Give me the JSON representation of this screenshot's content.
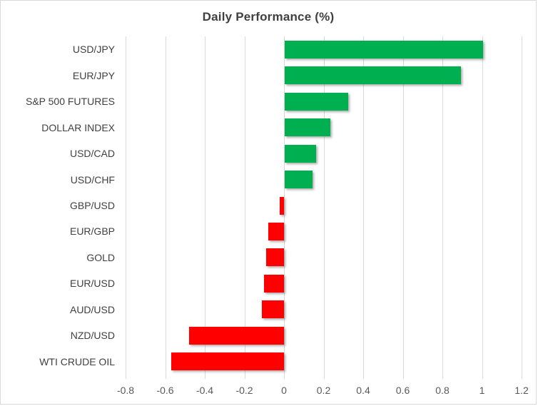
{
  "chart": {
    "title": "Daily Performance (%)",
    "colors": {
      "positive_bar": "#00B050",
      "negative_bar": "#FF0000",
      "gridline": "#D9D9D9",
      "tick_mark": "#D9D9D9",
      "border": "#D9D9D9",
      "title_text": "#404040",
      "category_text": "#404040",
      "axis_text": "#595959",
      "background": "#FFFFFF"
    }
  },
  "chart_data": {
    "type": "bar",
    "orientation": "horizontal",
    "title": "Daily Performance (%)",
    "categories": [
      "USD/JPY",
      "EUR/JPY",
      "S&P 500 FUTURES",
      "DOLLAR INDEX",
      "USD/CAD",
      "USD/CHF",
      "GBP/USD",
      "EUR/GBP",
      "GOLD",
      "EUR/USD",
      "AUD/USD",
      "NZD/USD",
      "WTI CRUDE OIL"
    ],
    "values": [
      1.0,
      0.89,
      0.32,
      0.23,
      0.16,
      0.14,
      -0.02,
      -0.08,
      -0.09,
      -0.1,
      -0.11,
      -0.48,
      -0.57
    ],
    "xlabel": "",
    "ylabel": "",
    "xlim": [
      -0.8,
      1.2
    ],
    "xticks": [
      -0.8,
      -0.6,
      -0.4,
      -0.2,
      0,
      0.2,
      0.4,
      0.6,
      0.8,
      1,
      1.2
    ],
    "xtick_labels": [
      "-0.8",
      "-0.6",
      "-0.4",
      "-0.2",
      "0",
      "0.2",
      "0.4",
      "0.6",
      "0.8",
      "1",
      "1.2"
    ],
    "grid": true,
    "legend": false
  }
}
